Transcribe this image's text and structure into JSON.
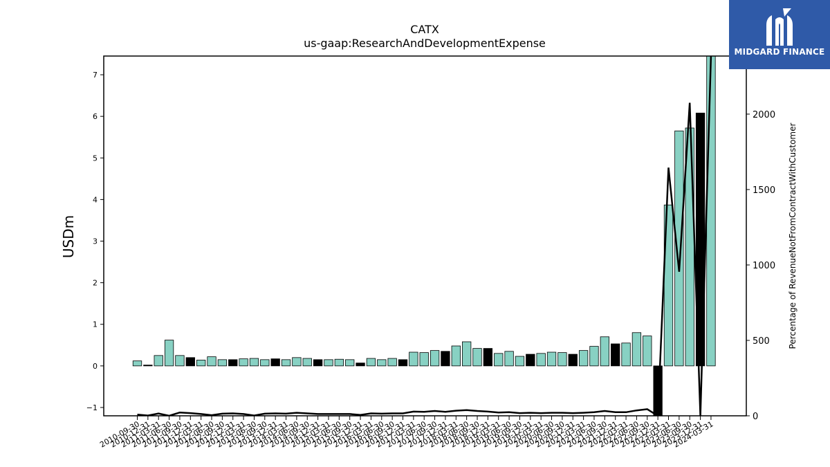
{
  "chart_data": {
    "type": "bar",
    "title": "CATX",
    "subtitle": "us-gaap:ResearchAndDevelopmentExpense",
    "ylabel": "USDm",
    "y2label": "Percentage of RevenueNotFromContractWithCustomer",
    "ylim": [
      -1.2,
      7.45
    ],
    "y2lim": [
      0,
      2385
    ],
    "yticks": [
      -1,
      0,
      1,
      2,
      3,
      4,
      5,
      6,
      7
    ],
    "y2ticks": [
      0,
      500,
      1000,
      1500,
      2000
    ],
    "bar_colors": {
      "quarter": "#88d1c3",
      "year_end": "#000000"
    },
    "categories": [
      "2010-09-30",
      "2010-12-31",
      "2011-03-31",
      "2011-06-30",
      "2011-09-30",
      "2011-12-31",
      "2012-03-31",
      "2012-06-30",
      "2012-09-30",
      "2012-12-31",
      "2013-03-31",
      "2013-06-30",
      "2013-09-30",
      "2013-12-31",
      "2014-03-31",
      "2014-06-30",
      "2014-09-30",
      "2014-12-31",
      "2015-03-31",
      "2015-06-30",
      "2015-09-30",
      "2015-12-31",
      "2016-03-31",
      "2016-06-30",
      "2016-09-30",
      "2016-12-31",
      "2017-03-31",
      "2017-06-30",
      "2017-09-30",
      "2017-12-31",
      "2018-03-31",
      "2018-06-30",
      "2018-09-30",
      "2018-12-31",
      "2019-03-31",
      "2019-06-30",
      "2019-09-30",
      "2019-12-31",
      "2020-03-31",
      "2020-06-30",
      "2020-09-30",
      "2020-12-31",
      "2021-03-31",
      "2021-06-30",
      "2021-09-30",
      "2021-12-31",
      "2022-03-31",
      "2022-06-30",
      "2022-09-30",
      "2022-12-31",
      "2023-03-31",
      "2023-06-30",
      "2023-09-30",
      "2023-12-31",
      "2024-03-31"
    ],
    "series": [
      {
        "type": "bar",
        "values": [
          0.12,
          0.02,
          0.25,
          0.62,
          0.25,
          0.2,
          0.14,
          0.22,
          0.15,
          0.15,
          0.17,
          0.18,
          0.15,
          0.17,
          0.15,
          0.2,
          0.18,
          0.15,
          0.15,
          0.16,
          0.15,
          0.07,
          0.18,
          0.15,
          0.18,
          0.15,
          0.33,
          0.32,
          0.37,
          0.35,
          0.48,
          0.58,
          0.42,
          0.42,
          0.3,
          0.35,
          0.23,
          0.28,
          0.3,
          0.33,
          0.32,
          0.28,
          0.37,
          0.47,
          0.7,
          0.53,
          0.55,
          0.8,
          0.72,
          -1.2,
          3.87,
          5.65,
          5.72,
          6.08,
          7.45
        ],
        "year_end": [
          false,
          true,
          false,
          false,
          false,
          true,
          false,
          false,
          false,
          true,
          false,
          false,
          false,
          true,
          false,
          false,
          false,
          true,
          false,
          false,
          false,
          true,
          false,
          false,
          false,
          true,
          false,
          false,
          false,
          true,
          false,
          false,
          false,
          true,
          false,
          false,
          false,
          true,
          false,
          false,
          false,
          true,
          false,
          false,
          false,
          true,
          false,
          false,
          false,
          true,
          false,
          false,
          false,
          true,
          false
        ]
      },
      {
        "type": "line",
        "axis": "right",
        "values": [
          8,
          2,
          15,
          0,
          22,
          18,
          12,
          4,
          14,
          16,
          12,
          2,
          14,
          16,
          14,
          20,
          16,
          12,
          12,
          12,
          12,
          6,
          16,
          14,
          16,
          16,
          28,
          26,
          32,
          26,
          34,
          38,
          32,
          28,
          22,
          24,
          18,
          20,
          18,
          20,
          20,
          18,
          20,
          24,
          32,
          24,
          24,
          36,
          44,
          0,
          1645,
          955,
          2075,
          0,
          2385
        ]
      }
    ]
  },
  "logo": {
    "text": "MIDGARD FINANCE"
  }
}
